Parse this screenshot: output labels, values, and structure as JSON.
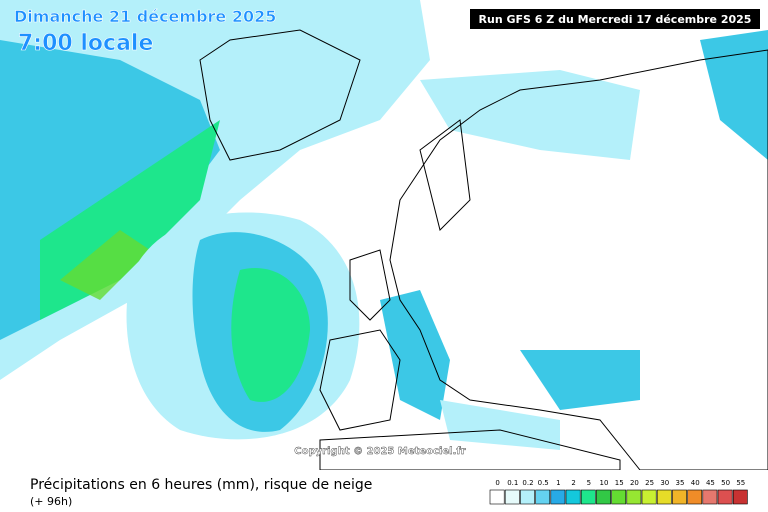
{
  "map": {
    "date": "Dimanche 21 décembre 2025",
    "time": "7:00 locale",
    "run": "Run GFS 6 Z du Mercredi 17 décembre 2025",
    "copyright": "Copyright © 2025 Meteociel.fr",
    "title": "Précipitations en 6 heures (mm), risque de neige",
    "lead": "(+ 96h)",
    "legend": {
      "labels": [
        0,
        0.1,
        0.2,
        0.5,
        1,
        2,
        5,
        10,
        15,
        20,
        25,
        30,
        35,
        40,
        45,
        50,
        55
      ],
      "colors": [
        "#ffffff",
        "#e6fafa",
        "#b4f0fa",
        "#64d2f0",
        "#28aae6",
        "#14c8dc",
        "#1ee68c",
        "#32c846",
        "#64dc32",
        "#96e632",
        "#c8f032",
        "#e6dc28",
        "#f0b428",
        "#f08c28",
        "#e6786e",
        "#dc5050",
        "#c83232"
      ]
    }
  }
}
